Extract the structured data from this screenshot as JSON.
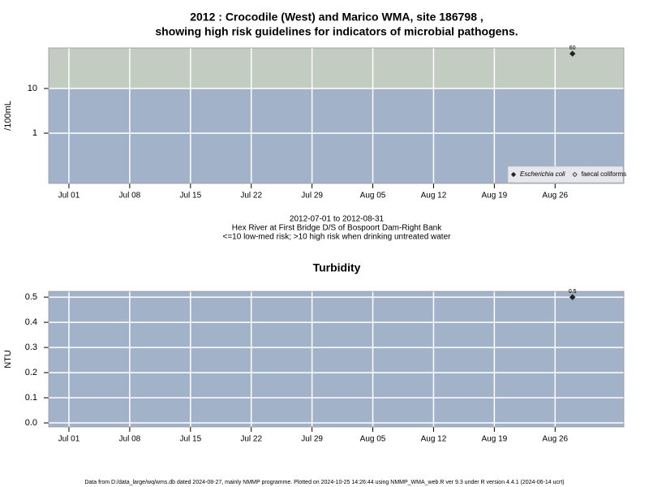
{
  "chart_data": [
    {
      "type": "scatter",
      "title": [
        "2012 : Crocodile (West) and Marico WMA, site 186798 ,",
        "showing high risk guidelines for indicators of microbial pathogens."
      ],
      "y_label": "/100mL",
      "notes": [
        "2012-07-01 to 2012-08-31",
        "Hex River at First Bridge D/S of Bospoort Dam-Right Bank",
        "<=10 low-med risk; >10 high risk when drinking untreated water"
      ],
      "x": [
        "2012-08-28"
      ],
      "series": [
        {
          "name": "Escherichia coli",
          "color": "#222222",
          "marker": "diamond-filled",
          "values": [
            60
          ]
        },
        {
          "name": "faecal coliforms",
          "color": "#222222",
          "marker": "diamond-open",
          "values": [
            null
          ]
        }
      ],
      "xlim": [
        "2012-06-28T16:00",
        "2012-09-02T22:00"
      ],
      "xticks": [
        {
          "value": "2012-07-01",
          "label": "Jul 01"
        },
        {
          "value": "2012-07-08",
          "label": "Jul 08"
        },
        {
          "value": "2012-07-15",
          "label": "Jul 15"
        },
        {
          "value": "2012-07-22",
          "label": "Jul 22"
        },
        {
          "value": "2012-07-29",
          "label": "Jul 29"
        },
        {
          "value": "2012-08-05",
          "label": "Aug 05"
        },
        {
          "value": "2012-08-12",
          "label": "Aug 12"
        },
        {
          "value": "2012-08-19",
          "label": "Aug 19"
        },
        {
          "value": "2012-08-26",
          "label": "Aug 26"
        }
      ],
      "ylim": [
        0.075,
        81
      ],
      "yticks": [
        1,
        10
      ],
      "log_y": true,
      "grid": true,
      "background": "#a2b2c9",
      "high_risk_above": 10,
      "high_risk_color": "#c3ccc1",
      "legend": "lower right"
    },
    {
      "type": "scatter",
      "title": [
        "Turbidity"
      ],
      "y_label": "NTU",
      "x": [
        "2012-08-28"
      ],
      "series": [
        {
          "name": "Turbidity",
          "color": "#222222",
          "marker": "diamond-filled",
          "values": [
            0.5
          ]
        }
      ],
      "xlim": [
        "2012-06-28T16:00",
        "2012-09-02T22:00"
      ],
      "xticks": [
        {
          "value": "2012-07-01",
          "label": "Jul 01"
        },
        {
          "value": "2012-07-08",
          "label": "Jul 08"
        },
        {
          "value": "2012-07-15",
          "label": "Jul 15"
        },
        {
          "value": "2012-07-22",
          "label": "Jul 22"
        },
        {
          "value": "2012-07-29",
          "label": "Jul 29"
        },
        {
          "value": "2012-08-05",
          "label": "Aug 05"
        },
        {
          "value": "2012-08-12",
          "label": "Aug 12"
        },
        {
          "value": "2012-08-19",
          "label": "Aug 19"
        },
        {
          "value": "2012-08-26",
          "label": "Aug 26"
        }
      ],
      "ylim": [
        -0.016,
        0.523
      ],
      "yticks": [
        {
          "value": 0,
          "label": "0.0"
        },
        0.1,
        0.2,
        0.3,
        0.4,
        0.5
      ],
      "log_y": false,
      "grid": true,
      "background": "#a2b2c9"
    }
  ],
  "footer": "Data from D:/data_large/wq/wms.db dated 2024-08-27, mainly NMMP programme. Plotted on 2024-10-25 14:26:44 using NMMP_WMA_web.R ver 9.3 under R version 4.4.1 (2024-06-14 ucrt)"
}
